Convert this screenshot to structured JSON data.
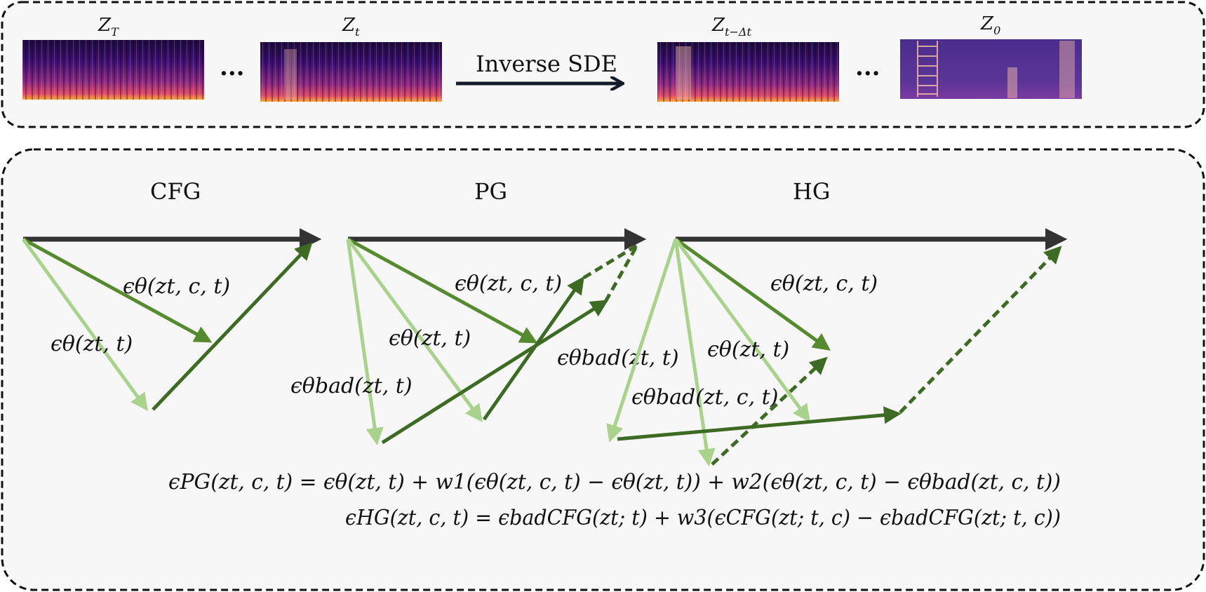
{
  "top_panel": {
    "labels": [
      {
        "base": "Z",
        "sub": "T"
      },
      {
        "base": "Z",
        "sub": "t"
      },
      {
        "base": "Z",
        "sub": "t−Δt"
      },
      {
        "base": "Z",
        "sub": "0"
      }
    ],
    "ellipsis": "...",
    "arrow_label": "Inverse SDE"
  },
  "bottom_panel": {
    "titles": [
      "CFG",
      "PG",
      "HG"
    ],
    "cfg": {
      "label_cond": "ϵθ(zt, c, t)",
      "label_uncond": "ϵθ(zt, t)"
    },
    "pg": {
      "label_cond": "ϵθ(zt, c, t)",
      "label_uncond": "ϵθ(zt, t)",
      "label_bad": "ϵθbad(zt, t)",
      "label_bad_cond": "ϵθbad(zt, t)"
    },
    "hg": {
      "label_cond_a": "ϵθ(zt, c, t)",
      "label_cond_b": "ϵθ(zt, t)",
      "label_bad": "ϵθbad(zt, c, t)"
    },
    "equation_pg": "ϵPG(zt, c, t) = ϵθ(zt, t) + w1(ϵθ(zt, c, t) − ϵθ(zt, t)) + w2(ϵθ(zt, c, t) − ϵθbad(zt, c, t))",
    "equation_hg": "ϵHG(zt, c, t) = ϵbadCFG(zt; t) + w3(ϵCFG(zt; t, c) − ϵbadCFG(zt; t, c))"
  },
  "colors": {
    "dark_arrow": "#333333",
    "green_dark": "#3e6b24",
    "green_mid": "#568a2f",
    "green_light": "#a9d38c",
    "navy_arrow": "#151b2b",
    "panel_bg": "#f7f7f7"
  }
}
